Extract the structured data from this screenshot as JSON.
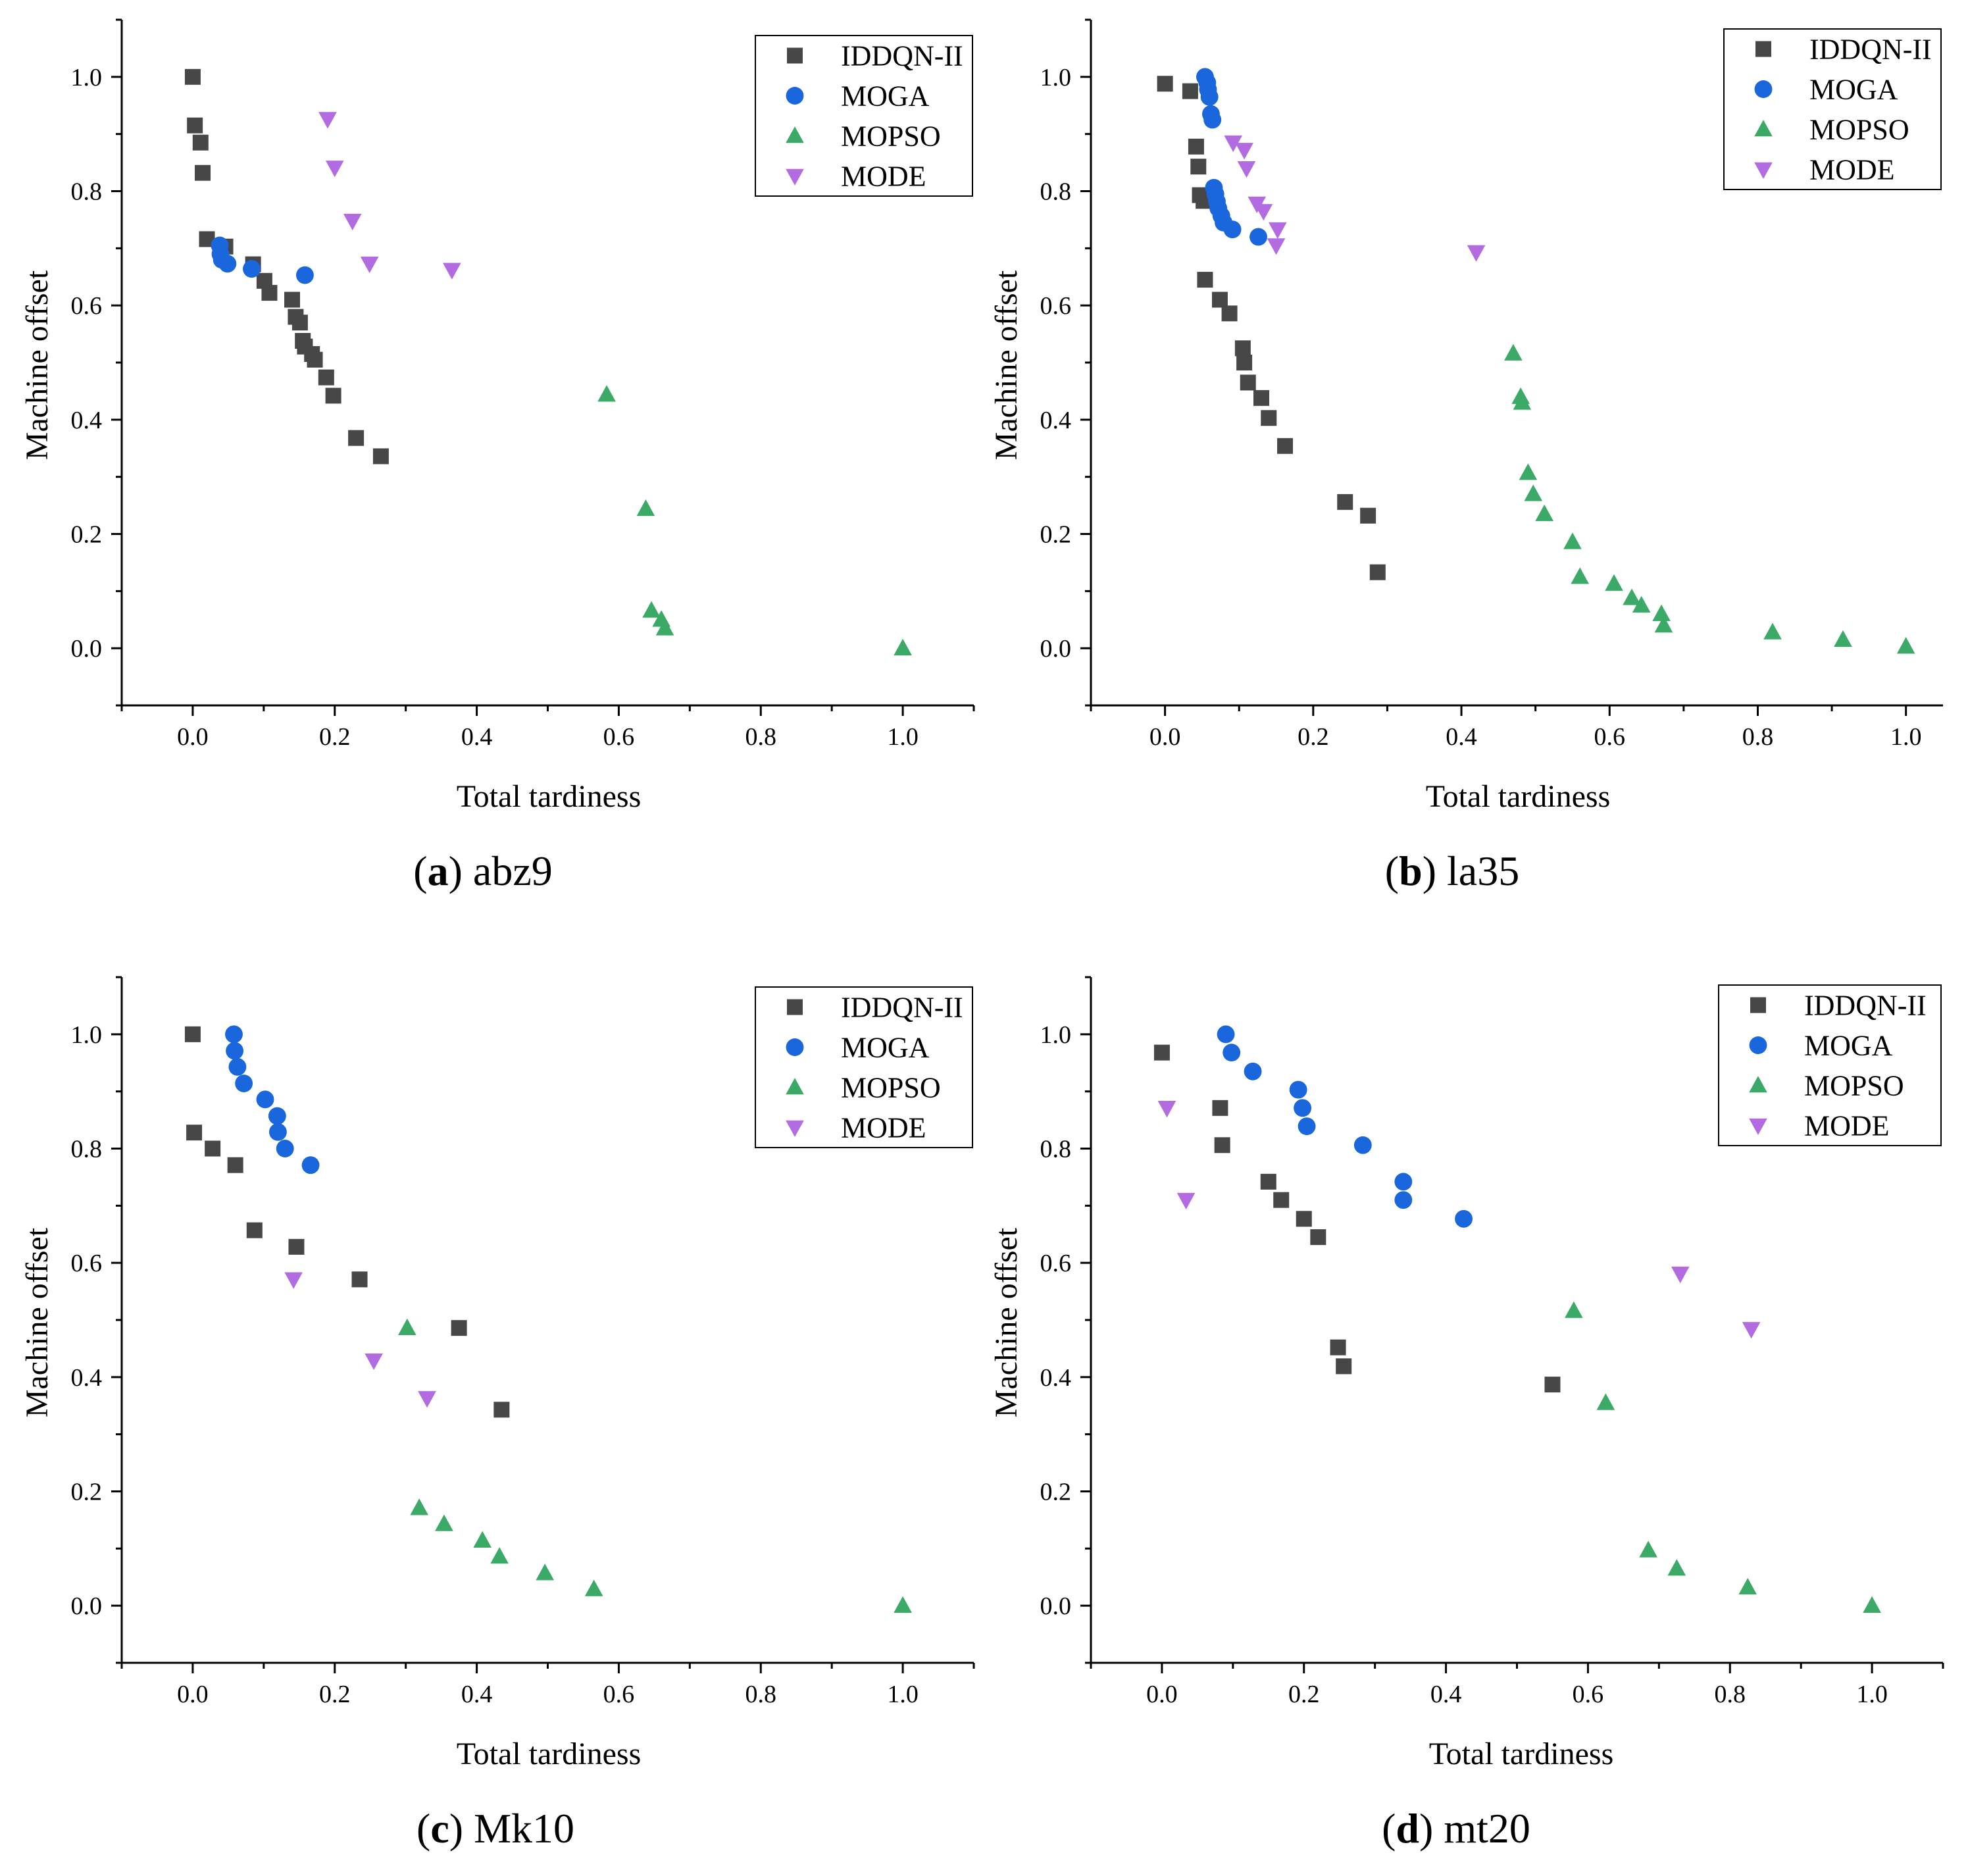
{
  "series_style": {
    "IDDQN-II": {
      "color": "#474747",
      "marker": "square"
    },
    "MOGA": {
      "color": "#1a66dd",
      "marker": "circle"
    },
    "MOPSO": {
      "color": "#3aaa66",
      "marker": "triangle-up"
    },
    "MODE": {
      "color": "#b26be0",
      "marker": "triangle-down"
    }
  },
  "chart_data": [
    {
      "id": "a",
      "type": "scatter",
      "caption_letter": "a",
      "caption_text": "abz9",
      "xlabel": "Total tardiness",
      "ylabel": "Machine offset",
      "xlim": [
        -0.1,
        1.1
      ],
      "ylim": [
        -0.1,
        1.1
      ],
      "xticks": [
        "0.0",
        "0.2",
        "0.4",
        "0.6",
        "0.8",
        "1.0"
      ],
      "yticks": [
        "0.0",
        "0.2",
        "0.4",
        "0.6",
        "0.8",
        "1.0"
      ],
      "legend_position": "top-right",
      "series": [
        {
          "name": "IDDQN-II",
          "points": [
            [
              0.0,
              1.0
            ],
            [
              0.003,
              0.915
            ],
            [
              0.011,
              0.885
            ],
            [
              0.014,
              0.832
            ],
            [
              0.02,
              0.716
            ],
            [
              0.046,
              0.703
            ],
            [
              0.085,
              0.672
            ],
            [
              0.101,
              0.643
            ],
            [
              0.108,
              0.622
            ],
            [
              0.14,
              0.61
            ],
            [
              0.145,
              0.58
            ],
            [
              0.151,
              0.57
            ],
            [
              0.155,
              0.538
            ],
            [
              0.158,
              0.528
            ],
            [
              0.168,
              0.515
            ],
            [
              0.172,
              0.505
            ],
            [
              0.188,
              0.474
            ],
            [
              0.198,
              0.442
            ],
            [
              0.23,
              0.368
            ],
            [
              0.265,
              0.336
            ]
          ]
        },
        {
          "name": "MOGA",
          "points": [
            [
              0.038,
              0.705
            ],
            [
              0.039,
              0.69
            ],
            [
              0.041,
              0.68
            ],
            [
              0.049,
              0.673
            ],
            [
              0.083,
              0.664
            ],
            [
              0.158,
              0.653
            ]
          ]
        },
        {
          "name": "MOPSO",
          "points": [
            [
              0.583,
              0.444
            ],
            [
              0.638,
              0.244
            ],
            [
              0.646,
              0.066
            ],
            [
              0.66,
              0.05
            ],
            [
              0.665,
              0.035
            ],
            [
              1.0,
              0.0
            ]
          ]
        },
        {
          "name": "MODE",
          "points": [
            [
              0.19,
              0.926
            ],
            [
              0.2,
              0.841
            ],
            [
              0.225,
              0.748
            ],
            [
              0.249,
              0.673
            ],
            [
              0.365,
              0.662
            ]
          ]
        }
      ]
    },
    {
      "id": "b",
      "type": "scatter",
      "caption_letter": "b",
      "caption_text": "la35",
      "xlabel": "Total tardiness",
      "ylabel": "Machine offset",
      "xlim": [
        -0.1,
        1.05
      ],
      "ylim": [
        -0.1,
        1.1
      ],
      "xticks": [
        "0.0",
        "0.2",
        "0.4",
        "0.6",
        "0.8",
        "1.0"
      ],
      "yticks": [
        "0.0",
        "0.2",
        "0.4",
        "0.6",
        "0.8",
        "1.0"
      ],
      "legend_position": "top-right",
      "series": [
        {
          "name": "IDDQN-II",
          "points": [
            [
              0.0,
              0.988
            ],
            [
              0.034,
              0.975
            ],
            [
              0.042,
              0.878
            ],
            [
              0.045,
              0.843
            ],
            [
              0.047,
              0.793
            ],
            [
              0.052,
              0.783
            ],
            [
              0.054,
              0.645
            ],
            [
              0.074,
              0.61
            ],
            [
              0.087,
              0.586
            ],
            [
              0.105,
              0.525
            ],
            [
              0.107,
              0.5
            ],
            [
              0.112,
              0.465
            ],
            [
              0.13,
              0.438
            ],
            [
              0.14,
              0.403
            ],
            [
              0.162,
              0.354
            ],
            [
              0.243,
              0.256
            ],
            [
              0.274,
              0.232
            ],
            [
              0.287,
              0.133
            ]
          ]
        },
        {
          "name": "MOGA",
          "points": [
            [
              0.054,
              1.0
            ],
            [
              0.057,
              0.99
            ],
            [
              0.058,
              0.978
            ],
            [
              0.06,
              0.965
            ],
            [
              0.062,
              0.935
            ],
            [
              0.064,
              0.925
            ],
            [
              0.066,
              0.806
            ],
            [
              0.068,
              0.795
            ],
            [
              0.07,
              0.782
            ],
            [
              0.072,
              0.77
            ],
            [
              0.076,
              0.757
            ],
            [
              0.079,
              0.745
            ],
            [
              0.091,
              0.733
            ],
            [
              0.126,
              0.72
            ]
          ]
        },
        {
          "name": "MOPSO",
          "points": [
            [
              0.47,
              0.516
            ],
            [
              0.48,
              0.44
            ],
            [
              0.482,
              0.43
            ],
            [
              0.49,
              0.307
            ],
            [
              0.497,
              0.27
            ],
            [
              0.512,
              0.235
            ],
            [
              0.55,
              0.186
            ],
            [
              0.56,
              0.125
            ],
            [
              0.606,
              0.113
            ],
            [
              0.63,
              0.088
            ],
            [
              0.643,
              0.075
            ],
            [
              0.67,
              0.06
            ],
            [
              0.673,
              0.04
            ],
            [
              0.82,
              0.028
            ],
            [
              0.915,
              0.015
            ],
            [
              1.0,
              0.003
            ]
          ]
        },
        {
          "name": "MODE",
          "points": [
            [
              0.092,
              0.885
            ],
            [
              0.107,
              0.872
            ],
            [
              0.11,
              0.84
            ],
            [
              0.124,
              0.778
            ],
            [
              0.133,
              0.765
            ],
            [
              0.152,
              0.733
            ],
            [
              0.15,
              0.705
            ],
            [
              0.42,
              0.693
            ]
          ]
        }
      ]
    },
    {
      "id": "c",
      "type": "scatter",
      "caption_letter": "c",
      "caption_text": "Mk10",
      "xlabel": "Total tardiness",
      "ylabel": "Machine offset",
      "xlim": [
        -0.1,
        1.1
      ],
      "ylim": [
        -0.1,
        1.1
      ],
      "xticks": [
        "0.0",
        "0.2",
        "0.4",
        "0.6",
        "0.8",
        "1.0"
      ],
      "yticks": [
        "0.0",
        "0.2",
        "0.4",
        "0.6",
        "0.8",
        "1.0"
      ],
      "legend_position": "top-right",
      "series": [
        {
          "name": "IDDQN-II",
          "points": [
            [
              0.0,
              1.0
            ],
            [
              0.002,
              0.828
            ],
            [
              0.028,
              0.8
            ],
            [
              0.06,
              0.771
            ],
            [
              0.087,
              0.657
            ],
            [
              0.146,
              0.628
            ],
            [
              0.235,
              0.571
            ],
            [
              0.375,
              0.486
            ],
            [
              0.435,
              0.343
            ]
          ]
        },
        {
          "name": "MOGA",
          "points": [
            [
              0.058,
              1.0
            ],
            [
              0.059,
              0.971
            ],
            [
              0.063,
              0.943
            ],
            [
              0.072,
              0.914
            ],
            [
              0.102,
              0.886
            ],
            [
              0.119,
              0.857
            ],
            [
              0.12,
              0.829
            ],
            [
              0.13,
              0.8
            ],
            [
              0.166,
              0.771
            ]
          ]
        },
        {
          "name": "MOPSO",
          "points": [
            [
              0.302,
              0.486
            ],
            [
              0.319,
              0.171
            ],
            [
              0.354,
              0.143
            ],
            [
              0.408,
              0.114
            ],
            [
              0.432,
              0.086
            ],
            [
              0.496,
              0.057
            ],
            [
              0.565,
              0.029
            ],
            [
              1.0,
              0.0
            ]
          ]
        },
        {
          "name": "MODE",
          "points": [
            [
              0.142,
              0.571
            ],
            [
              0.255,
              0.429
            ],
            [
              0.33,
              0.363
            ]
          ]
        }
      ]
    },
    {
      "id": "d",
      "type": "scatter",
      "caption_letter": "d",
      "caption_text": "mt20",
      "xlabel": "Total tardiness",
      "ylabel": "Machine offset",
      "xlim": [
        -0.1,
        1.1
      ],
      "ylim": [
        -0.1,
        1.1
      ],
      "xticks": [
        "0.0",
        "0.2",
        "0.4",
        "0.6",
        "0.8",
        "1.0"
      ],
      "yticks": [
        "0.0",
        "0.2",
        "0.4",
        "0.6",
        "0.8",
        "1.0"
      ],
      "legend_position": "top-right",
      "series": [
        {
          "name": "IDDQN-II",
          "points": [
            [
              0.0,
              0.968
            ],
            [
              0.082,
              0.871
            ],
            [
              0.085,
              0.806
            ],
            [
              0.15,
              0.742
            ],
            [
              0.168,
              0.71
            ],
            [
              0.2,
              0.677
            ],
            [
              0.22,
              0.645
            ],
            [
              0.248,
              0.452
            ],
            [
              0.256,
              0.419
            ],
            [
              0.55,
              0.387
            ]
          ]
        },
        {
          "name": "MOGA",
          "points": [
            [
              0.09,
              1.0
            ],
            [
              0.098,
              0.968
            ],
            [
              0.128,
              0.935
            ],
            [
              0.192,
              0.903
            ],
            [
              0.198,
              0.871
            ],
            [
              0.204,
              0.839
            ],
            [
              0.283,
              0.806
            ],
            [
              0.34,
              0.742
            ],
            [
              0.34,
              0.71
            ],
            [
              0.425,
              0.677
            ]
          ]
        },
        {
          "name": "MOPSO",
          "points": [
            [
              0.58,
              0.516
            ],
            [
              0.625,
              0.355
            ],
            [
              0.685,
              0.097
            ],
            [
              0.725,
              0.065
            ],
            [
              0.825,
              0.032
            ],
            [
              1.0,
              0.0
            ]
          ]
        },
        {
          "name": "MODE",
          "points": [
            [
              0.007,
              0.871
            ],
            [
              0.034,
              0.71
            ],
            [
              0.73,
              0.581
            ],
            [
              0.83,
              0.484
            ]
          ]
        }
      ]
    }
  ]
}
